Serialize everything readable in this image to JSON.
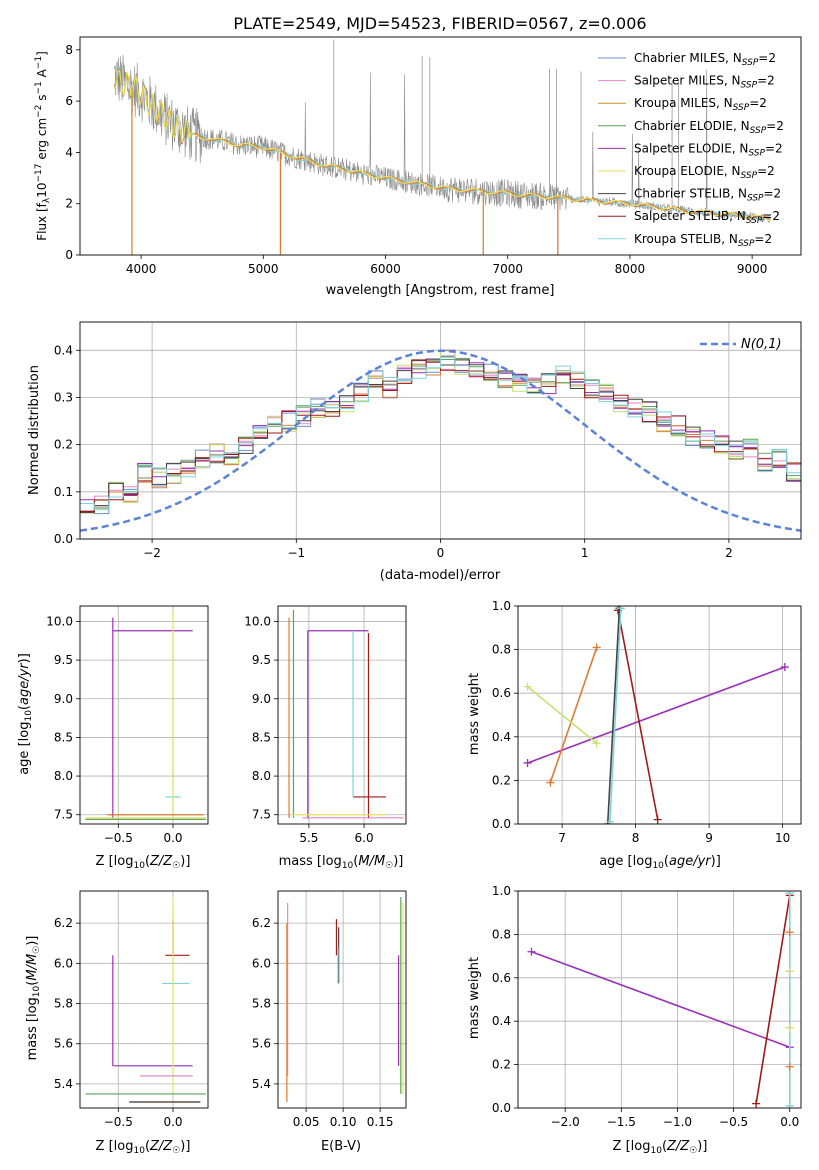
{
  "colors": {
    "Chabrier MILES": "#6b8fd8",
    "Salpeter MILES": "#e887c5",
    "Kroupa MILES": "#c8902a",
    "Chabrier ELODIE": "#5aa55a",
    "Salpeter ELODIE": "#9b2fb8",
    "Kroupa ELODIE": "#e8e25a",
    "Chabrier STELIB": "#444444",
    "Salpeter STELIB": "#a01a1a",
    "Kroupa STELIB": "#7fd3d8",
    "orange_fit": "#e07a30",
    "yellowgreen_fit": "#c8e070",
    "normal_curve": "#5b84d6",
    "data_spectrum": "#888888",
    "grid": "#b0b0b0"
  },
  "chart_data": [
    {
      "id": "spectrum",
      "type": "line",
      "title": "PLATE=2549, MJD=54523, FIBERID=0567, z=0.006",
      "xlabel": "wavelength [Angstrom, rest frame]",
      "ylabel": "Flux [f_λ 10^-17 erg cm^-2 s^-1 A^-1]",
      "xlim": [
        3500,
        9400
      ],
      "ylim": [
        0,
        8.5
      ],
      "xticks": [
        "4000",
        "5000",
        "6000",
        "7000",
        "8000",
        "9000"
      ],
      "yticks": [
        "0",
        "2",
        "4",
        "6",
        "8"
      ],
      "legend_position": "top-right",
      "legend": [
        {
          "name": "Chabrier MILES",
          "suffix": "=2"
        },
        {
          "name": "Salpeter MILES",
          "suffix": "=2"
        },
        {
          "name": "Kroupa MILES",
          "suffix": "=2"
        },
        {
          "name": "Chabrier ELODIE",
          "suffix": "=2"
        },
        {
          "name": "Salpeter ELODIE",
          "suffix": "=2"
        },
        {
          "name": "Kroupa ELODIE",
          "suffix": "=2"
        },
        {
          "name": "Chabrier STELIB",
          "suffix": "=2"
        },
        {
          "name": "Salpeter STELIB",
          "suffix": "=2"
        },
        {
          "name": "Kroupa STELIB",
          "suffix": "=2"
        }
      ],
      "continuum": {
        "x": [
          3780,
          3900,
          4000,
          4200,
          4400,
          4600,
          4800,
          5000,
          5200,
          5500,
          6000,
          6500,
          7000,
          7500,
          8000,
          8500,
          9000,
          9150
        ],
        "y": [
          7.0,
          6.6,
          6.3,
          5.3,
          4.7,
          4.5,
          4.3,
          4.2,
          3.9,
          3.5,
          3.0,
          2.6,
          2.4,
          2.2,
          2.0,
          1.7,
          1.5,
          1.4
        ]
      }
    },
    {
      "id": "residuals",
      "type": "line",
      "xlabel": "(data-model)/error",
      "ylabel": "Normed distribution",
      "xlim": [
        -2.5,
        2.5
      ],
      "ylim": [
        0,
        0.46
      ],
      "xticks": [
        "−2",
        "−1",
        "0",
        "1",
        "2"
      ],
      "yticks": [
        "0.0",
        "0.1",
        "0.2",
        "0.3",
        "0.4"
      ],
      "legend_position": "top-right",
      "normal_label": "N(0,1)",
      "bin_width": 0.1,
      "hist_base": [
        0.07,
        0.07,
        0.1,
        0.09,
        0.14,
        0.13,
        0.14,
        0.15,
        0.17,
        0.18,
        0.18,
        0.2,
        0.23,
        0.24,
        0.25,
        0.26,
        0.28,
        0.27,
        0.29,
        0.31,
        0.34,
        0.32,
        0.35,
        0.36,
        0.37,
        0.38,
        0.37,
        0.36,
        0.35,
        0.34,
        0.33,
        0.32,
        0.33,
        0.35,
        0.34,
        0.32,
        0.31,
        0.29,
        0.28,
        0.27,
        0.25,
        0.24,
        0.22,
        0.21,
        0.2,
        0.19,
        0.19,
        0.16,
        0.17,
        0.14,
        0.13,
        0.11,
        0.1,
        0.08,
        0.08,
        0.07,
        0.06,
        0.06,
        0.05,
        0.05,
        0.04,
        0.04,
        0.03,
        0.03,
        0.03,
        0.03,
        0.03
      ]
    },
    {
      "id": "age-vs-Z",
      "type": "scatter",
      "xlabel": "Z [log10(Z/Z☉)]",
      "ylabel": "age [log10(age/yr)]",
      "xlim": [
        -0.85,
        0.32
      ],
      "ylim": [
        7.38,
        10.2
      ],
      "xticks": [
        "−0.5",
        "0.0"
      ],
      "yticks": [
        "7.5",
        "8.0",
        "8.5",
        "9.0",
        "9.5",
        "10.0"
      ],
      "segments": [
        {
          "c": "Salpeter ELODIE",
          "x1": -0.55,
          "y1": 7.45,
          "x2": -0.55,
          "y2": 10.05
        },
        {
          "c": "Salpeter ELODIE",
          "x1": -0.55,
          "y1": 9.88,
          "x2": 0.18,
          "y2": 9.88
        },
        {
          "c": "Kroupa STELIB",
          "x1": 0.0,
          "y1": 7.45,
          "x2": 0.0,
          "y2": 9.88
        },
        {
          "c": "Kroupa STELIB",
          "x1": -0.07,
          "y1": 7.73,
          "x2": 0.07,
          "y2": 7.73
        },
        {
          "c": "Kroupa ELODIE",
          "x1": 0.0,
          "y1": 7.45,
          "x2": 0.0,
          "y2": 10.15
        },
        {
          "c": "Kroupa ELODIE",
          "x1": -0.8,
          "y1": 7.46,
          "x2": 0.3,
          "y2": 7.46
        },
        {
          "c": "orange_fit",
          "x1": -0.6,
          "y1": 7.5,
          "x2": 0.28,
          "y2": 7.5
        },
        {
          "c": "Chabrier ELODIE",
          "x1": -0.8,
          "y1": 7.44,
          "x2": 0.3,
          "y2": 7.44
        }
      ]
    },
    {
      "id": "age-vs-mass",
      "type": "scatter",
      "xlabel": "mass [log10(M/M☉)]",
      "xlim": [
        5.22,
        6.38
      ],
      "ylim": [
        7.38,
        10.2
      ],
      "xticks": [
        "5.5",
        "6.0"
      ],
      "yticks": [
        "7.5",
        "8.0",
        "8.5",
        "9.0",
        "9.5",
        "10.0"
      ],
      "segments": [
        {
          "c": "Salpeter ELODIE",
          "x1": 5.49,
          "y1": 7.45,
          "x2": 5.49,
          "y2": 9.88
        },
        {
          "c": "Salpeter ELODIE",
          "x1": 5.49,
          "y1": 9.88,
          "x2": 6.04,
          "y2": 9.88
        },
        {
          "c": "Salpeter STELIB",
          "x1": 6.04,
          "y1": 7.45,
          "x2": 6.04,
          "y2": 9.85
        },
        {
          "c": "Salpeter STELIB",
          "x1": 5.9,
          "y1": 7.73,
          "x2": 6.2,
          "y2": 7.73
        },
        {
          "c": "Kroupa STELIB",
          "x1": 5.9,
          "y1": 7.73,
          "x2": 5.9,
          "y2": 9.88
        },
        {
          "c": "orange_fit",
          "x1": 5.32,
          "y1": 7.46,
          "x2": 5.32,
          "y2": 10.05
        },
        {
          "c": "Chabrier ELODIE",
          "x1": 5.36,
          "y1": 7.46,
          "x2": 5.36,
          "y2": 10.15
        },
        {
          "c": "Kroupa ELODIE",
          "x1": 5.35,
          "y1": 7.5,
          "x2": 6.2,
          "y2": 7.5
        },
        {
          "c": "Salpeter MILES",
          "x1": 5.44,
          "y1": 7.46,
          "x2": 6.36,
          "y2": 7.46
        }
      ]
    },
    {
      "id": "massweight-vs-age",
      "type": "line",
      "xlabel": "age [log10(age/yr)]",
      "ylabel": "mass weight",
      "xlim": [
        6.4,
        10.25
      ],
      "ylim": [
        0,
        1.0
      ],
      "xticks": [
        "7",
        "8",
        "9",
        "10"
      ],
      "yticks": [
        "0.0",
        "0.2",
        "0.4",
        "0.6",
        "0.8",
        "1.0"
      ],
      "series": [
        {
          "c": "Salpeter ELODIE",
          "x": [
            6.53,
            10.03
          ],
          "y": [
            0.28,
            0.72
          ]
        },
        {
          "c": "orange_fit",
          "x": [
            6.84,
            7.47
          ],
          "y": [
            0.19,
            0.81
          ]
        },
        {
          "c": "yellowgreen_fit",
          "x": [
            6.53,
            7.47
          ],
          "y": [
            0.63,
            0.37
          ]
        },
        {
          "c": "Salpeter STELIB",
          "x": [
            7.76,
            8.3
          ],
          "y": [
            0.98,
            0.02
          ]
        },
        {
          "c": "Chabrier STELIB",
          "x": [
            7.62,
            7.78
          ],
          "y": [
            0.0,
            0.99
          ]
        },
        {
          "c": "Kroupa STELIB",
          "x": [
            7.65,
            7.8
          ],
          "y": [
            0.01,
            0.99
          ]
        }
      ]
    },
    {
      "id": "mass-vs-Z",
      "type": "scatter",
      "xlabel": "Z [log10(Z/Z☉)]",
      "ylabel": "mass [log10(M/M☉)]",
      "xlim": [
        -0.85,
        0.32
      ],
      "ylim": [
        5.28,
        6.36
      ],
      "xticks": [
        "−0.5",
        "0.0"
      ],
      "yticks": [
        "5.4",
        "5.6",
        "5.8",
        "6.0",
        "6.2"
      ],
      "segments": [
        {
          "c": "Salpeter ELODIE",
          "x1": -0.55,
          "y1": 5.49,
          "x2": -0.55,
          "y2": 6.04
        },
        {
          "c": "Salpeter ELODIE",
          "x1": -0.55,
          "y1": 5.49,
          "x2": 0.18,
          "y2": 5.49
        },
        {
          "c": "Salpeter STELIB",
          "x1": 0.0,
          "y1": 6.04,
          "x2": 0.0,
          "y2": 6.22
        },
        {
          "c": "Salpeter STELIB",
          "x1": -0.07,
          "y1": 6.04,
          "x2": 0.15,
          "y2": 6.04
        },
        {
          "c": "Kroupa STELIB",
          "x1": -0.1,
          "y1": 5.9,
          "x2": 0.15,
          "y2": 5.9
        },
        {
          "c": "Kroupa ELODIE",
          "x1": 0.0,
          "y1": 5.35,
          "x2": 0.0,
          "y2": 6.33
        },
        {
          "c": "Salpeter MILES",
          "x1": -0.3,
          "y1": 5.44,
          "x2": 0.18,
          "y2": 5.44
        },
        {
          "c": "Chabrier ELODIE",
          "x1": -0.8,
          "y1": 5.35,
          "x2": 0.3,
          "y2": 5.35
        },
        {
          "c": "orange_fit",
          "x1": -0.4,
          "y1": 5.31,
          "x2": 0.25,
          "y2": 5.31
        },
        {
          "c": "Chabrier STELIB",
          "x1": -0.4,
          "y1": 5.31,
          "x2": 0.25,
          "y2": 5.31
        }
      ]
    },
    {
      "id": "mass-vs-EBV",
      "type": "scatter",
      "xlabel": "E(B-V)",
      "xlim": [
        0.012,
        0.185
      ],
      "ylim": [
        5.28,
        6.36
      ],
      "xticks": [
        "0.05",
        "0.10",
        "0.15"
      ],
      "yticks": [
        "5.4",
        "5.6",
        "5.8",
        "6.0",
        "6.2"
      ],
      "segments": [
        {
          "c": "Salpeter MILES",
          "x1": 0.025,
          "y1": 5.44,
          "x2": 0.025,
          "y2": 6.3
        },
        {
          "c": "orange_fit",
          "x1": 0.024,
          "y1": 5.31,
          "x2": 0.024,
          "y2": 6.2
        },
        {
          "c": "Salpeter STELIB",
          "x1": 0.091,
          "y1": 6.04,
          "x2": 0.091,
          "y2": 6.22
        },
        {
          "c": "Chabrier STELIB",
          "x1": 0.094,
          "y1": 5.9,
          "x2": 0.094,
          "y2": 6.18
        },
        {
          "c": "Kroupa STELIB",
          "x1": 0.093,
          "y1": 5.9,
          "x2": 0.093,
          "y2": 6.08
        },
        {
          "c": "Salpeter ELODIE",
          "x1": 0.175,
          "y1": 5.49,
          "x2": 0.175,
          "y2": 6.04
        },
        {
          "c": "Chabrier ELODIE",
          "x1": 0.178,
          "y1": 5.35,
          "x2": 0.178,
          "y2": 6.33
        },
        {
          "c": "Kroupa ELODIE",
          "x1": 0.181,
          "y1": 5.35,
          "x2": 0.181,
          "y2": 6.3
        }
      ]
    },
    {
      "id": "massweight-vs-Z",
      "type": "line",
      "xlabel": "Z [log10(Z/Z☉)]",
      "ylabel": "mass weight",
      "xlim": [
        -2.42,
        0.1
      ],
      "ylim": [
        0,
        1.0
      ],
      "xticks": [
        "−2.0",
        "−1.5",
        "−1.0",
        "−0.5",
        "0.0"
      ],
      "yticks": [
        "0.0",
        "0.2",
        "0.4",
        "0.6",
        "0.8",
        "1.0"
      ],
      "series": [
        {
          "c": "Salpeter ELODIE",
          "x": [
            -2.3,
            0.0
          ],
          "y": [
            0.72,
            0.28
          ]
        },
        {
          "c": "Salpeter STELIB",
          "x": [
            -0.3,
            0.0
          ],
          "y": [
            0.02,
            0.98
          ]
        },
        {
          "c": "Kroupa STELIB",
          "x": [
            0.0,
            0.0
          ],
          "y": [
            0.01,
            0.99
          ]
        }
      ],
      "markers": [
        {
          "c": "orange_fit",
          "x": 0.0,
          "y": 0.19
        },
        {
          "c": "orange_fit",
          "x": 0.0,
          "y": 0.81
        },
        {
          "c": "yellowgreen_fit",
          "x": 0.0,
          "y": 0.63
        },
        {
          "c": "yellowgreen_fit",
          "x": 0.0,
          "y": 0.37
        },
        {
          "c": "Kroupa STELIB",
          "x": 0.0,
          "y": 0.99
        }
      ]
    }
  ]
}
